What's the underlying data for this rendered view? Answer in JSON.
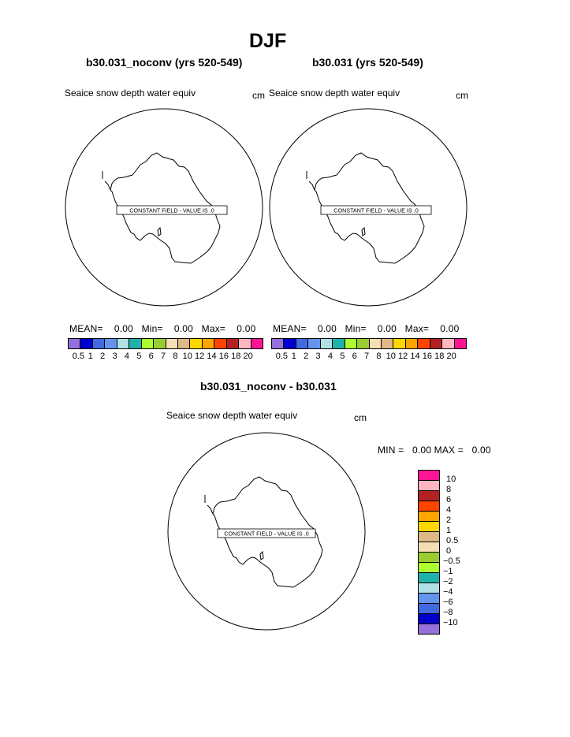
{
  "title": "DJF",
  "panels": [
    {
      "subtitle": "b30.031_noconv (yrs 520-549)",
      "field": "Seaice snow depth water equiv",
      "units": "cm",
      "constant_label": "CONSTANT FIELD - VALUE IS .0",
      "stats": {
        "mean_label": "MEAN=",
        "mean": "0.00",
        "min_label": "Min=",
        "min": "0.00",
        "max_label": "Max=",
        "max": "0.00"
      }
    },
    {
      "subtitle": "b30.031 (yrs 520-549)",
      "field": "Seaice snow depth water equiv",
      "units": "cm",
      "constant_label": "CONSTANT FIELD - VALUE IS .0",
      "stats": {
        "mean_label": "MEAN=",
        "mean": "0.00",
        "min_label": "Min=",
        "min": "0.00",
        "max_label": "Max=",
        "max": "0.00"
      }
    }
  ],
  "diff_panel": {
    "subtitle": "b30.031_noconv - b30.031",
    "field": "Seaice snow depth water equiv",
    "units": "cm",
    "constant_label": "CONSTANT FIELD - VALUE IS .0",
    "stats": {
      "min_label": "MIN =",
      "min": "0.00",
      "max_label": "MAX =",
      "max": "0.00"
    }
  },
  "colorbar": {
    "colors": [
      "#9370db",
      "#0000cd",
      "#4169e1",
      "#6495ed",
      "#b0e0e6",
      "#20b2aa",
      "#adff2f",
      "#9acd32",
      "#f5deb3",
      "#deb887",
      "#ffd700",
      "#ffa500",
      "#ff4500",
      "#b22222",
      "#ffb6c1",
      "#ff1493"
    ],
    "labels": [
      "0.5",
      "1",
      "2",
      "3",
      "4",
      "5",
      "6",
      "7",
      "8",
      "10",
      "12",
      "14",
      "16",
      "18",
      "20"
    ]
  },
  "diff_colorbar": {
    "colors_top_to_bottom": [
      "#ff1493",
      "#ffb6c1",
      "#b22222",
      "#ff4500",
      "#ffa500",
      "#ffd700",
      "#deb887",
      "#f5deb3",
      "#9acd32",
      "#adff2f",
      "#20b2aa",
      "#b0e0e6",
      "#6495ed",
      "#4169e1",
      "#0000cd",
      "#9370db"
    ],
    "labels_top_to_bottom": [
      "10",
      "8",
      "6",
      "4",
      "2",
      "1",
      "0.5",
      "0",
      "−0.5",
      "−1",
      "−2",
      "−4",
      "−6",
      "−8",
      "−10"
    ]
  }
}
